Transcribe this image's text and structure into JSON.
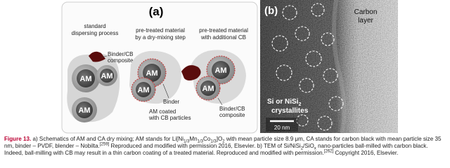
{
  "panel_a": {
    "label": "(a)",
    "columns": [
      {
        "title": [
          "standard",
          "dispersing process"
        ],
        "particles": [
          "AM",
          "AM",
          "AM"
        ],
        "callouts": [
          [
            "Binder/CB",
            "composite"
          ]
        ]
      },
      {
        "title": [
          "pre-treated material",
          "by a dry-mixing step"
        ],
        "particles": [
          "AM",
          "AM"
        ],
        "callouts": [
          [
            "Binder"
          ],
          [
            "AM coated",
            "with CB particles"
          ]
        ]
      },
      {
        "title": [
          "pre-treated material",
          "with additional CB"
        ],
        "particles": [
          "AM",
          "AM"
        ],
        "callouts": [
          [
            "Binder/CB",
            "composite"
          ]
        ]
      }
    ]
  },
  "panel_b": {
    "label": "(b)",
    "carbon_label": [
      "Carbon",
      "layer"
    ],
    "crystallite_label": {
      "lines": [
        [
          "Si or NiSi",
          "2"
        ],
        [
          "crystallites"
        ]
      ]
    },
    "scale_bar": "20 nm"
  },
  "caption": {
    "label": "Figure 13.",
    "runs": [
      {
        "text": " a) Schematics of AM and CA dry mixing; AM stands for Li[Ni",
        "style": "normal"
      },
      {
        "text": "1/3",
        "style": "sub"
      },
      {
        "text": "Mn",
        "style": "normal"
      },
      {
        "text": "1/3",
        "style": "sub"
      },
      {
        "text": "Co",
        "style": "normal"
      },
      {
        "text": "1/3",
        "style": "sub"
      },
      {
        "text": "]O",
        "style": "normal"
      },
      {
        "text": "2",
        "style": "sub"
      },
      {
        "text": " with mean particle size 8.9 μm, CA stands for carbon black with mean particle size 35 nm, binder – PVDF, blender – Nobilta.",
        "style": "normal"
      },
      {
        "text": "[259]",
        "style": "sup"
      },
      {
        "text": " Reproduced and modified with permission 2016, Elsevier. b) TEM of Si/NiSi",
        "style": "normal"
      },
      {
        "text": "2",
        "style": "sub"
      },
      {
        "text": "/SiO",
        "style": "normal"
      },
      {
        "text": "x",
        "style": "sub"
      },
      {
        "text": " nano-particles ball-milled with carbon black. Indeed, ball-milling with CB may result in a thin carbon coating of a treated material. Reproduced and modified with permission.",
        "style": "normal"
      },
      {
        "text": "[262]",
        "style": "sup"
      },
      {
        "text": " Copyright 2016, Elsevier.",
        "style": "normal"
      }
    ]
  }
}
